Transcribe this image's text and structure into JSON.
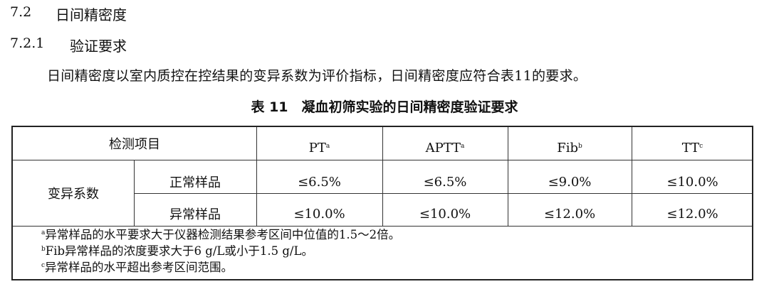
{
  "section": {
    "number": "7.2",
    "title": "日间精密度"
  },
  "subsection": {
    "number": "7.2.1",
    "title": "验证要求"
  },
  "paragraph": "日间精密度以室内质控在控结果的变异系数为评价指标，日间精密度应符合表11的要求。",
  "table": {
    "caption": "表 11　凝血初筛实验的日间精密度验证要求",
    "header": {
      "item_label": "检测项目",
      "columns": [
        {
          "name": "PT",
          "note": "a"
        },
        {
          "name": "APTT",
          "note": "a"
        },
        {
          "name": "Fib",
          "note": "b"
        },
        {
          "name": "TT",
          "note": "c"
        }
      ]
    },
    "row_group": "变异系数",
    "rows": [
      {
        "label": "正常样品",
        "values": [
          "≤6.5%",
          "≤6.5%",
          "≤9.0%",
          "≤10.0%"
        ]
      },
      {
        "label": "异常样品",
        "values": [
          "≤10.0%",
          "≤10.0%",
          "≤12.0%",
          "≤12.0%"
        ]
      }
    ],
    "footnotes": [
      {
        "mark": "a",
        "text": "异常样品的水平要求大于仪器检测结果参考区间中位值的1.5～2倍。"
      },
      {
        "mark": "b",
        "text": "Fib异常样品的浓度要求大于6 g/L或小于1.5 g/L。"
      },
      {
        "mark": "c",
        "text": "异常样品的水平超出参考区间范围。"
      }
    ]
  }
}
